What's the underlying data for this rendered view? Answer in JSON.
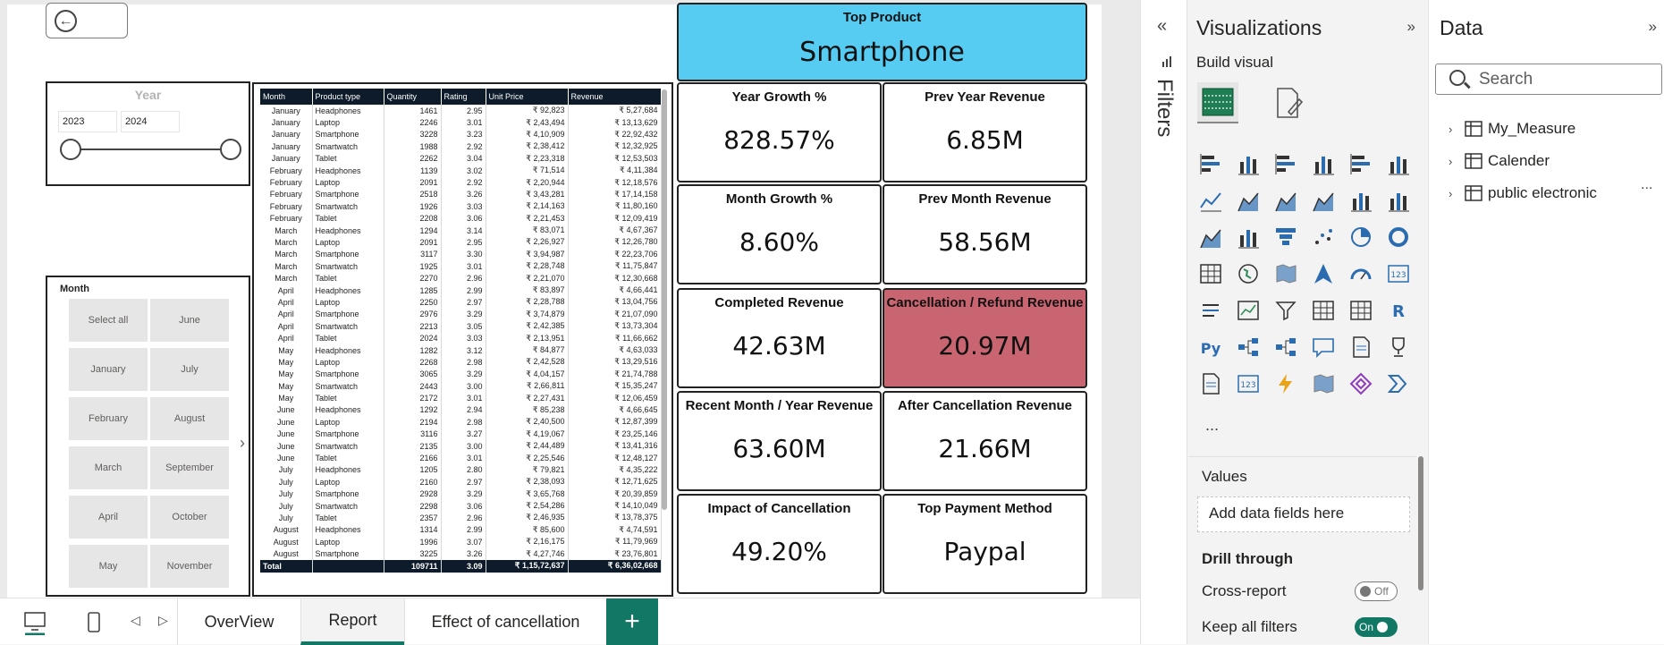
{
  "report": {
    "back_icon": "back-arrow-icon",
    "year_slicer": {
      "title": "Year",
      "start": "2023",
      "end": "2024"
    },
    "month_slicer": {
      "title": "Month",
      "items": [
        "Select all",
        "June",
        "January",
        "July",
        "February",
        "August",
        "March",
        "September",
        "April",
        "October",
        "May",
        "November"
      ]
    },
    "table": {
      "headers": [
        "Month",
        "Product type",
        "Quantity",
        "Rating",
        "Unit Price",
        "Revenue"
      ],
      "rows": [
        [
          "January",
          "Headphones",
          "1461",
          "2.95",
          "₹ 92,823",
          "₹ 5,27,684"
        ],
        [
          "January",
          "Laptop",
          "2246",
          "3.01",
          "₹ 2,43,494",
          "₹ 13,13,629"
        ],
        [
          "January",
          "Smartphone",
          "3228",
          "3.23",
          "₹ 4,10,909",
          "₹ 22,92,432"
        ],
        [
          "January",
          "Smartwatch",
          "1988",
          "2.92",
          "₹ 2,38,412",
          "₹ 12,32,925"
        ],
        [
          "January",
          "Tablet",
          "2262",
          "3.04",
          "₹ 2,23,318",
          "₹ 12,53,503"
        ],
        [
          "February",
          "Headphones",
          "1139",
          "3.02",
          "₹ 71,514",
          "₹ 4,11,384"
        ],
        [
          "February",
          "Laptop",
          "2091",
          "2.92",
          "₹ 2,20,944",
          "₹ 12,18,576"
        ],
        [
          "February",
          "Smartphone",
          "2518",
          "3.26",
          "₹ 3,43,281",
          "₹ 17,14,158"
        ],
        [
          "February",
          "Smartwatch",
          "1926",
          "3.03",
          "₹ 2,14,163",
          "₹ 11,80,160"
        ],
        [
          "February",
          "Tablet",
          "2208",
          "3.06",
          "₹ 2,21,453",
          "₹ 12,09,419"
        ],
        [
          "March",
          "Headphones",
          "1294",
          "3.14",
          "₹ 83,071",
          "₹ 4,67,367"
        ],
        [
          "March",
          "Laptop",
          "2091",
          "2.95",
          "₹ 2,26,927",
          "₹ 12,26,780"
        ],
        [
          "March",
          "Smartphone",
          "3117",
          "3.30",
          "₹ 3,94,987",
          "₹ 22,23,706"
        ],
        [
          "March",
          "Smartwatch",
          "1925",
          "3.01",
          "₹ 2,28,748",
          "₹ 11,75,847"
        ],
        [
          "March",
          "Tablet",
          "2270",
          "2.96",
          "₹ 2,21,070",
          "₹ 12,30,668"
        ],
        [
          "April",
          "Headphones",
          "1285",
          "2.99",
          "₹ 83,897",
          "₹ 4,66,441"
        ],
        [
          "April",
          "Laptop",
          "2250",
          "2.97",
          "₹ 2,28,788",
          "₹ 13,04,756"
        ],
        [
          "April",
          "Smartphone",
          "2976",
          "3.29",
          "₹ 3,74,879",
          "₹ 21,07,090"
        ],
        [
          "April",
          "Smartwatch",
          "2213",
          "3.05",
          "₹ 2,42,385",
          "₹ 13,73,304"
        ],
        [
          "April",
          "Tablet",
          "2024",
          "3.03",
          "₹ 2,13,951",
          "₹ 11,66,662"
        ],
        [
          "May",
          "Headphones",
          "1282",
          "3.12",
          "₹ 84,877",
          "₹ 4,63,033"
        ],
        [
          "May",
          "Laptop",
          "2268",
          "2.98",
          "₹ 2,42,528",
          "₹ 13,29,516"
        ],
        [
          "May",
          "Smartphone",
          "3065",
          "3.29",
          "₹ 4,04,157",
          "₹ 21,74,788"
        ],
        [
          "May",
          "Smartwatch",
          "2443",
          "3.00",
          "₹ 2,66,811",
          "₹ 15,35,247"
        ],
        [
          "May",
          "Tablet",
          "2172",
          "3.01",
          "₹ 2,27,431",
          "₹ 12,06,459"
        ],
        [
          "June",
          "Headphones",
          "1292",
          "2.94",
          "₹ 85,238",
          "₹ 4,66,645"
        ],
        [
          "June",
          "Laptop",
          "2194",
          "2.98",
          "₹ 2,40,500",
          "₹ 12,87,399"
        ],
        [
          "June",
          "Smartphone",
          "3116",
          "3.27",
          "₹ 4,19,067",
          "₹ 23,25,146"
        ],
        [
          "June",
          "Smartwatch",
          "2135",
          "3.00",
          "₹ 2,44,489",
          "₹ 13,41,316"
        ],
        [
          "June",
          "Tablet",
          "2166",
          "3.01",
          "₹ 2,25,546",
          "₹ 12,48,127"
        ],
        [
          "July",
          "Headphones",
          "1205",
          "2.80",
          "₹ 79,821",
          "₹ 4,35,222"
        ],
        [
          "July",
          "Laptop",
          "2160",
          "2.97",
          "₹ 2,38,093",
          "₹ 12,71,625"
        ],
        [
          "July",
          "Smartphone",
          "2928",
          "3.29",
          "₹ 3,65,768",
          "₹ 20,39,859"
        ],
        [
          "July",
          "Smartwatch",
          "2298",
          "3.06",
          "₹ 2,54,286",
          "₹ 14,10,049"
        ],
        [
          "July",
          "Tablet",
          "2357",
          "2.96",
          "₹ 2,46,935",
          "₹ 13,78,375"
        ],
        [
          "August",
          "Headphones",
          "1314",
          "2.99",
          "₹ 85,600",
          "₹ 4,74,591"
        ],
        [
          "August",
          "Laptop",
          "1996",
          "3.07",
          "₹ 2,16,175",
          "₹ 11,79,969"
        ],
        [
          "August",
          "Smartphone",
          "3225",
          "3.26",
          "₹ 4,27,746",
          "₹ 23,76,801"
        ]
      ],
      "total": [
        "Total",
        "",
        "109711",
        "3.09",
        "₹ 1,15,72,637",
        "₹ 6,36,02,668"
      ]
    },
    "cards": {
      "top_product": {
        "label": "Top Product",
        "value": "Smartphone"
      },
      "year_growth": {
        "label": "Year Growth %",
        "value": "828.57%"
      },
      "prev_year_revenue": {
        "label": "Prev Year Revenue",
        "value": "6.85M"
      },
      "month_growth": {
        "label": "Month Growth %",
        "value": "8.60%"
      },
      "prev_month_revenue": {
        "label": "Prev Month Revenue",
        "value": "58.56M"
      },
      "completed_revenue": {
        "label": "Completed Revenue",
        "value": "42.63M"
      },
      "cancellation_revenue": {
        "label": "Cancellation / Refund Revenue",
        "value": "20.97M"
      },
      "recent_revenue": {
        "label": "Recent Month / Year Revenue",
        "value": "63.60M"
      },
      "after_cancellation": {
        "label": "After Cancellation Revenue",
        "value": "21.66M"
      },
      "impact_cancellation": {
        "label": "Impact of Cancellation",
        "value": "49.20%"
      },
      "top_payment": {
        "label": "Top Payment Method",
        "value": "Paypal"
      }
    },
    "colors": {
      "top_card": "#56ccf2",
      "cancel_card": "#c86570",
      "accent": "#117865",
      "table_header": "#0d1b2a"
    }
  },
  "filters": {
    "label": "Filters"
  },
  "visualizations": {
    "title": "Visualizations",
    "build_visual": "Build visual",
    "more": "...",
    "values_label": "Values",
    "add_fields": "Add data fields here",
    "drill_through": "Drill through",
    "cross_report": "Cross-report",
    "cross_report_state": "Off",
    "keep_filters": "Keep all filters",
    "keep_filters_state": "On"
  },
  "data": {
    "title": "Data",
    "search_placeholder": "Search",
    "tables": [
      "My_Measure",
      "Calender",
      "public electronic"
    ],
    "more": "..."
  },
  "tabs": {
    "items": [
      "OverView",
      "Report",
      "Effect of cancellation"
    ],
    "active": "Report",
    "add": "+"
  }
}
